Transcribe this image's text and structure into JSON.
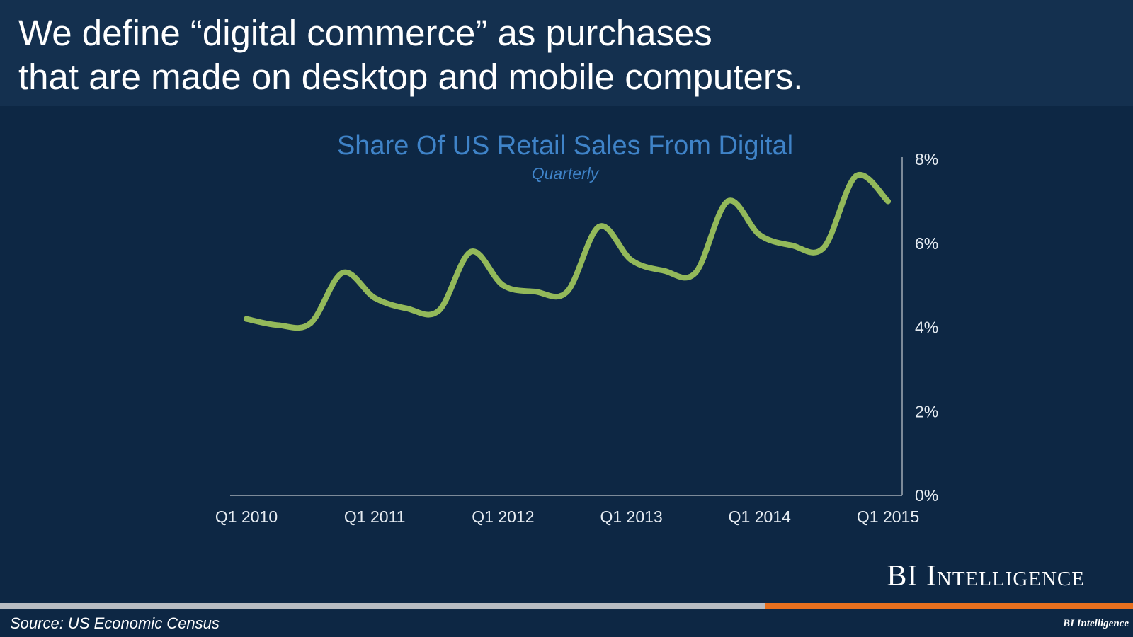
{
  "headline": {
    "line1": "We define “digital commerce” as purchases",
    "line2": "that are made on desktop and mobile computers."
  },
  "chart_data": {
    "type": "line",
    "title": "Share Of US Retail Sales From Digital",
    "subtitle": "Quarterly",
    "x": [
      "Q1 2010",
      "Q2 2010",
      "Q3 2010",
      "Q4 2010",
      "Q1 2011",
      "Q2 2011",
      "Q3 2011",
      "Q4 2011",
      "Q1 2012",
      "Q2 2012",
      "Q3 2012",
      "Q4 2012",
      "Q1 2013",
      "Q2 2013",
      "Q3 2013",
      "Q4 2013",
      "Q1 2014",
      "Q2 2014",
      "Q3 2014",
      "Q4 2014",
      "Q1 2015"
    ],
    "xticks": [
      "Q1 2010",
      "Q1 2011",
      "Q1 2012",
      "Q1 2013",
      "Q1 2014",
      "Q1 2015"
    ],
    "series": [
      {
        "values": [
          4.2,
          4.05,
          4.1,
          5.3,
          4.7,
          4.45,
          4.4,
          5.8,
          5.0,
          4.85,
          4.85,
          6.4,
          5.6,
          5.35,
          5.3,
          7.0,
          6.2,
          5.95,
          5.9,
          7.6,
          7.0
        ]
      }
    ],
    "yticks": [
      "0%",
      "2%",
      "4%",
      "6%",
      "8%"
    ],
    "ylim": [
      0,
      8
    ],
    "ylabel": "",
    "xlabel": "",
    "grid": false,
    "y_axis_side": "right",
    "line_color": "#93b95a"
  },
  "brand": "BI Intelligence",
  "brand_small": "BI Intelligence",
  "source": "Source: US Economic Census",
  "colors": {
    "background": "#0d2744",
    "header": "#14304f",
    "accent_blue": "#3f83c8",
    "line": "#93b95a",
    "bar_grey": "#b7bcc2",
    "bar_orange": "#e8701e"
  }
}
